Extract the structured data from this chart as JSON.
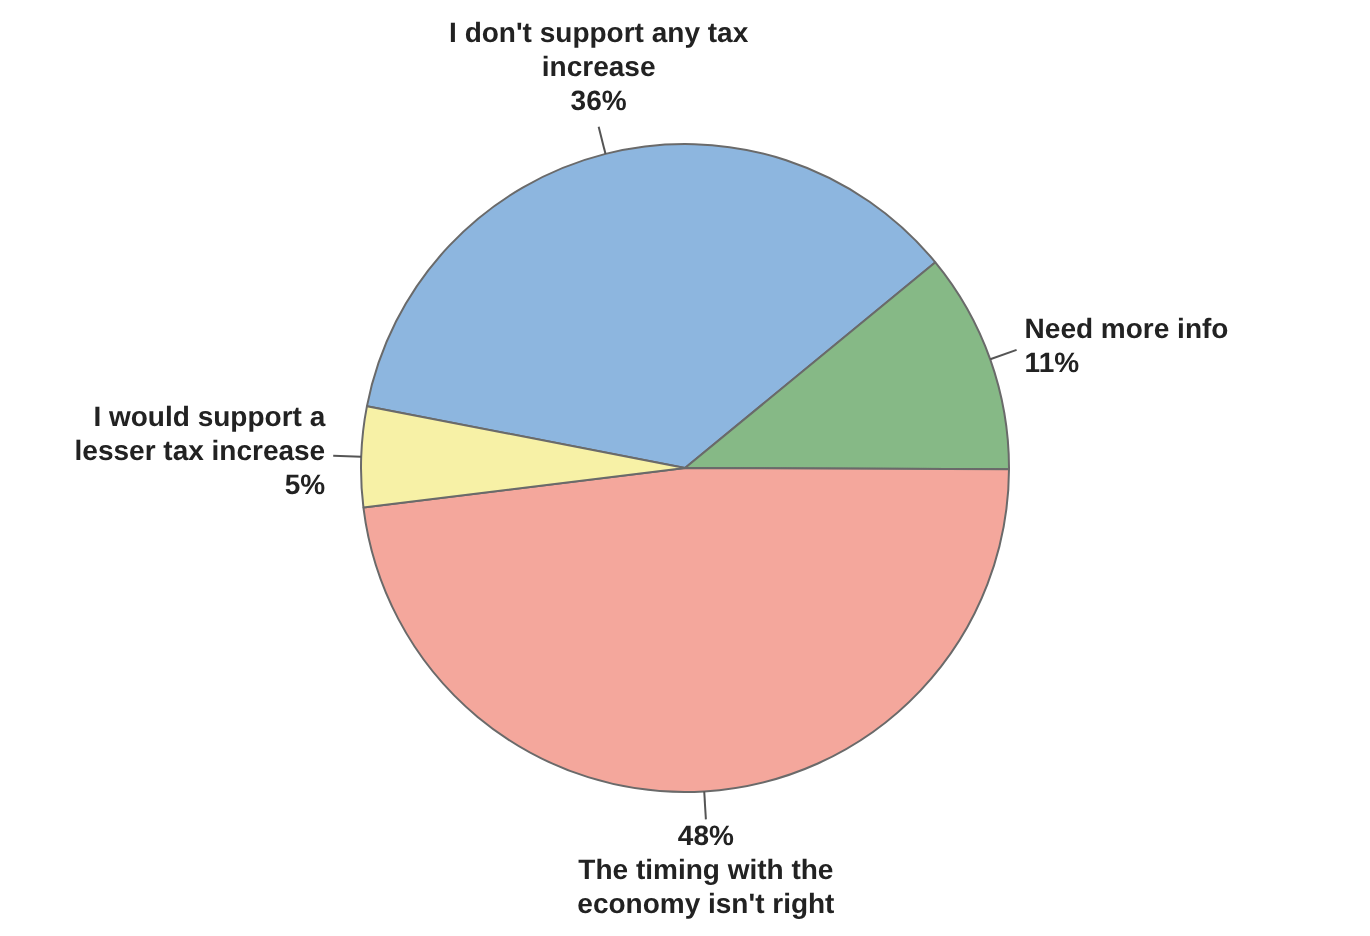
{
  "chart_data": {
    "type": "pie",
    "categories": [
      "I don't support any tax increase",
      "Need more info",
      "The timing with the economy isn't right",
      "I would support a lesser tax increase"
    ],
    "values": [
      36,
      11,
      48,
      5
    ],
    "colors": [
      "#8db6df",
      "#86b986",
      "#f4a79c",
      "#f7f1a6"
    ],
    "value_labels": [
      "36%",
      "11%",
      "48%",
      "5%"
    ],
    "legend": false
  }
}
